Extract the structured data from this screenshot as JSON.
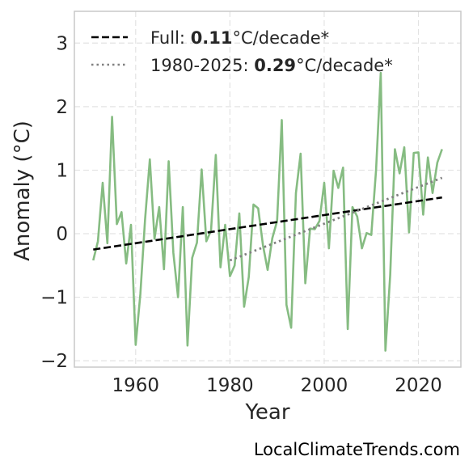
{
  "chart_data": {
    "type": "line",
    "xlabel": "Year",
    "ylabel": "Anomaly (°C)",
    "xlim": [
      1947,
      2029
    ],
    "ylim": [
      -2.1,
      3.5
    ],
    "xticks": [
      1960,
      1980,
      2000,
      2020
    ],
    "yticks": [
      -2,
      -1,
      0,
      1,
      2,
      3
    ],
    "ytick_labels": [
      "−2",
      "−1",
      "0",
      "1",
      "2",
      "3"
    ],
    "grid": true,
    "legend_position": "top-left",
    "series": [
      {
        "style": "solid",
        "color": "#86bc82",
        "x": [
          1951,
          1952,
          1953,
          1954,
          1955,
          1956,
          1957,
          1958,
          1959,
          1960,
          1961,
          1962,
          1963,
          1964,
          1965,
          1966,
          1967,
          1968,
          1969,
          1970,
          1971,
          1972,
          1973,
          1974,
          1975,
          1976,
          1977,
          1978,
          1979,
          1980,
          1981,
          1982,
          1983,
          1984,
          1985,
          1986,
          1987,
          1988,
          1989,
          1990,
          1991,
          1992,
          1993,
          1994,
          1995,
          1996,
          1997,
          1998,
          1999,
          2000,
          2001,
          2002,
          2003,
          2004,
          2005,
          2006,
          2007,
          2008,
          2009,
          2010,
          2011,
          2012,
          2013,
          2014,
          2015,
          2016,
          2017,
          2018,
          2019,
          2020,
          2021,
          2022,
          2023,
          2024,
          2025
        ],
        "values": [
          -0.42,
          -0.12,
          0.8,
          -0.15,
          1.84,
          0.15,
          0.34,
          -0.47,
          0.14,
          -1.75,
          -0.95,
          0.22,
          1.17,
          -0.08,
          0.42,
          -0.56,
          1.14,
          -0.3,
          -1.0,
          0.42,
          -1.76,
          -0.38,
          -0.14,
          1.01,
          -0.12,
          0.05,
          1.24,
          -0.53,
          0.14,
          -0.67,
          -0.5,
          0.32,
          -1.15,
          -0.68,
          0.46,
          0.4,
          -0.18,
          -0.57,
          -0.07,
          0.2,
          1.79,
          -1.12,
          -1.48,
          0.64,
          1.26,
          -0.78,
          0.08,
          0.07,
          0.2,
          0.8,
          -0.23,
          0.99,
          0.72,
          1.04,
          -1.5,
          0.42,
          0.27,
          -0.23,
          0.01,
          -0.02,
          1.0,
          2.53,
          -1.84,
          -0.65,
          1.33,
          0.95,
          1.36,
          0.02,
          1.27,
          1.28,
          0.3,
          1.2,
          0.64,
          1.12,
          1.33
        ]
      },
      {
        "name": "Full",
        "rate": "0.11",
        "unit": "°C/decade*",
        "style": "dashed",
        "color": "#000000",
        "x": [
          1951,
          2025
        ],
        "values": [
          -0.25,
          0.57
        ]
      },
      {
        "name": "1980-2025",
        "rate": "0.29",
        "unit": "°C/decade*",
        "style": "dotted",
        "color": "#808080",
        "x": [
          1980,
          2025
        ],
        "values": [
          -0.42,
          0.88
        ]
      }
    ]
  },
  "credit": "LocalClimateTrends.com"
}
